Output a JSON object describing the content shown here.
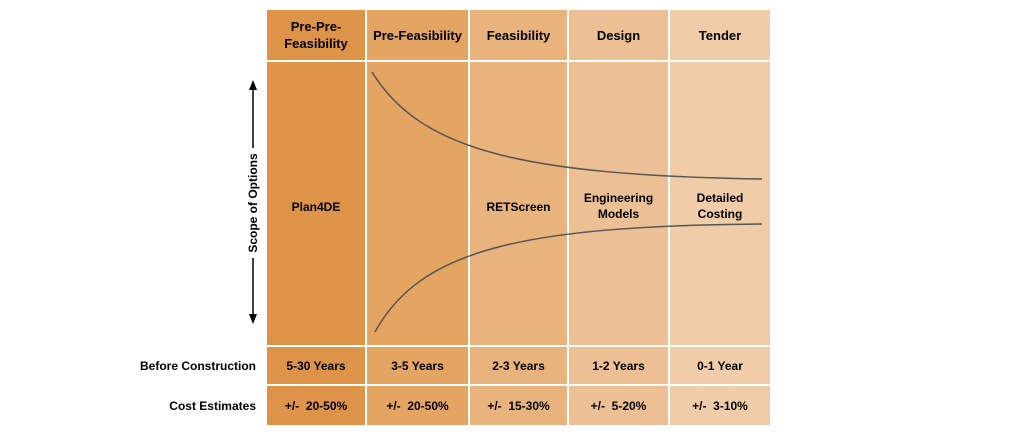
{
  "phases": [
    {
      "header": "Pre-Pre-\nFeasibility",
      "tool": "Plan4DE",
      "before_construction": "5-30 Years",
      "cost_estimate": "+/-  20-50%",
      "color": "#de9448"
    },
    {
      "header": "Pre-Feasibility",
      "tool": "",
      "before_construction": "3-5 Years",
      "cost_estimate": "+/-  20-50%",
      "color": "#e4a462"
    },
    {
      "header": "Feasibility",
      "tool": "RETScreen",
      "before_construction": "2-3 Years",
      "cost_estimate": "+/-  15-30%",
      "color": "#e8b37c"
    },
    {
      "header": "Design",
      "tool": "Engineering\nModels",
      "before_construction": "1-2 Years",
      "cost_estimate": "+/-  5-20%",
      "color": "#ecc094"
    },
    {
      "header": "Tender",
      "tool": "Detailed\nCosting",
      "before_construction": "0-1 Year",
      "cost_estimate": "+/-  3-10%",
      "color": "#f0cda8"
    }
  ],
  "row_labels": {
    "before_construction": "Before Construction",
    "cost_estimates": "Cost Estimates"
  },
  "axis": {
    "label": "Scope of Options"
  },
  "colors": {
    "curve": "#555555",
    "divider": "#ffffff"
  }
}
